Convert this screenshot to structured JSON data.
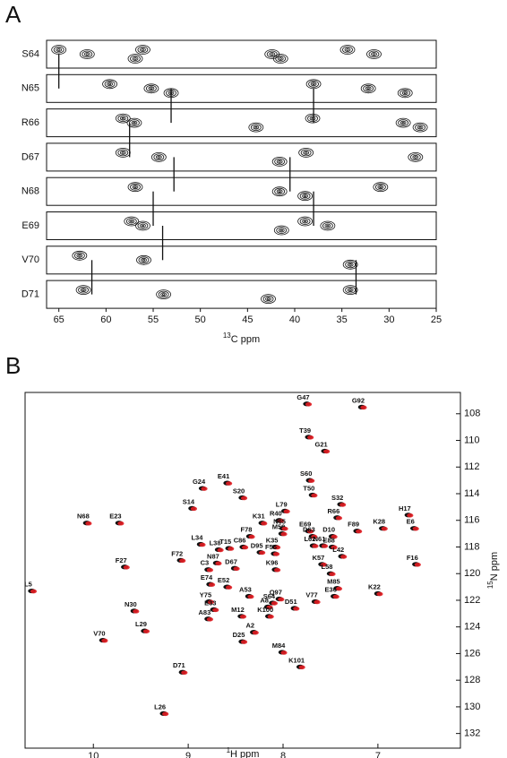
{
  "chart_data": [
    {
      "type": "strip",
      "panel": "A",
      "xlabel": {
        "sup": "13",
        "text": "C ppm"
      },
      "xlim": [
        66.3,
        25
      ],
      "xticks": [
        65,
        60,
        55,
        50,
        45,
        40,
        35,
        30,
        25
      ],
      "color": "#111111",
      "strips": [
        {
          "label": "S64",
          "peaks": [
            65.0,
            62.0,
            56.9,
            56.1,
            42.4,
            41.5,
            34.4,
            31.6
          ]
        },
        {
          "label": "N65",
          "peaks": [
            59.6,
            55.2,
            53.1,
            38.0,
            32.2,
            28.3
          ]
        },
        {
          "label": "R66",
          "peaks": [
            58.2,
            57.0,
            44.1,
            38.1,
            28.5,
            26.7
          ]
        },
        {
          "label": "D67",
          "peaks": [
            58.2,
            54.4,
            41.6,
            38.8,
            27.2
          ]
        },
        {
          "label": "N68",
          "peaks": [
            56.9,
            41.6,
            38.9,
            30.9
          ]
        },
        {
          "label": "E69",
          "peaks": [
            57.3,
            56.1,
            41.4,
            38.9,
            36.5
          ]
        },
        {
          "label": "V70",
          "peaks": [
            62.8,
            56.0,
            34.1
          ]
        },
        {
          "label": "D71",
          "peaks": [
            62.4,
            53.9,
            42.8,
            34.1
          ]
        }
      ],
      "connections": [
        {
          "x": 65.0,
          "from": 0,
          "to": 1
        },
        {
          "x": 53.1,
          "from": 1,
          "to": 2
        },
        {
          "x": 38.0,
          "from": 1,
          "to": 2
        },
        {
          "x": 57.5,
          "from": 2,
          "to": 3
        },
        {
          "x": 52.8,
          "from": 3,
          "to": 4
        },
        {
          "x": 40.5,
          "from": 3,
          "to": 4
        },
        {
          "x": 38.0,
          "from": 4,
          "to": 5
        },
        {
          "x": 55.0,
          "from": 4,
          "to": 5
        },
        {
          "x": 54.0,
          "from": 5,
          "to": 6
        },
        {
          "x": 61.5,
          "from": 6,
          "to": 7
        },
        {
          "x": 33.5,
          "from": 6,
          "to": 7
        }
      ]
    },
    {
      "type": "scatter",
      "panel": "B",
      "xlabel": {
        "sup": "1",
        "text": "H ppm"
      },
      "ylabel": {
        "sup": "15",
        "text": "N ppm"
      },
      "xlim": [
        10.72,
        6.13
      ],
      "xticks": [
        10,
        9,
        8,
        7
      ],
      "ylim": [
        106.4,
        133.1
      ],
      "yticks": [
        108,
        110,
        112,
        114,
        116,
        118,
        120,
        122,
        124,
        126,
        128,
        130,
        132
      ],
      "colors": [
        "#111111",
        "#e31e24"
      ],
      "peaks": [
        {
          "label": "G47",
          "x": 7.74,
          "y": 107.26
        },
        {
          "label": "G92",
          "x": 7.16,
          "y": 107.5
        },
        {
          "label": "T39",
          "x": 7.72,
          "y": 109.75
        },
        {
          "label": "G21",
          "x": 7.55,
          "y": 110.8
        },
        {
          "label": "S60",
          "x": 7.71,
          "y": 113.0
        },
        {
          "label": "T50",
          "x": 7.68,
          "y": 114.1
        },
        {
          "label": "E41",
          "x": 8.58,
          "y": 113.2
        },
        {
          "label": "S20",
          "x": 8.42,
          "y": 114.3
        },
        {
          "label": "G24",
          "x": 8.84,
          "y": 113.6
        },
        {
          "label": "S32",
          "x": 7.38,
          "y": 114.8
        },
        {
          "label": "H17",
          "x": 6.67,
          "y": 115.6
        },
        {
          "label": "R66",
          "x": 7.42,
          "y": 115.8
        },
        {
          "label": "L79",
          "x": 7.97,
          "y": 115.3
        },
        {
          "label": "S14",
          "x": 8.95,
          "y": 115.1
        },
        {
          "label": "K31",
          "x": 8.21,
          "y": 116.2
        },
        {
          "label": "E69",
          "x": 7.72,
          "y": 116.8
        },
        {
          "label": "K28",
          "x": 6.94,
          "y": 116.6
        },
        {
          "label": "E6",
          "x": 6.61,
          "y": 116.6
        },
        {
          "label": "N68",
          "x": 10.06,
          "y": 116.2
        },
        {
          "label": "E23",
          "x": 9.72,
          "y": 116.2
        },
        {
          "label": "M59",
          "x": 8.0,
          "y": 117.0
        },
        {
          "label": "R40",
          "x": 8.03,
          "y": 116.0
        },
        {
          "label": "N65",
          "x": 7.99,
          "y": 116.6
        },
        {
          "label": "D63",
          "x": 7.68,
          "y": 117.2
        },
        {
          "label": "D10",
          "x": 7.47,
          "y": 117.2
        },
        {
          "label": "F78",
          "x": 8.34,
          "y": 117.2
        },
        {
          "label": "F89",
          "x": 7.21,
          "y": 116.8
        },
        {
          "label": "L34",
          "x": 8.86,
          "y": 117.8
        },
        {
          "label": "C86",
          "x": 8.41,
          "y": 118.0
        },
        {
          "label": "T15",
          "x": 8.56,
          "y": 118.1
        },
        {
          "label": "L38",
          "x": 8.67,
          "y": 118.2
        },
        {
          "label": "K35",
          "x": 8.07,
          "y": 118.0
        },
        {
          "label": "L62",
          "x": 7.67,
          "y": 117.9
        },
        {
          "label": "N61",
          "x": 7.57,
          "y": 117.9
        },
        {
          "label": "E88",
          "x": 7.47,
          "y": 118.0
        },
        {
          "label": "D95",
          "x": 8.23,
          "y": 118.4
        },
        {
          "label": "F55",
          "x": 8.08,
          "y": 118.5
        },
        {
          "label": "F72",
          "x": 9.07,
          "y": 119.0
        },
        {
          "label": "N87",
          "x": 8.69,
          "y": 119.2
        },
        {
          "label": "L42",
          "x": 7.37,
          "y": 118.7
        },
        {
          "label": "K57",
          "x": 7.58,
          "y": 119.3
        },
        {
          "label": "F16",
          "x": 6.59,
          "y": 119.3
        },
        {
          "label": "F27",
          "x": 9.66,
          "y": 119.5
        },
        {
          "label": "D67",
          "x": 8.5,
          "y": 119.6
        },
        {
          "label": "K96",
          "x": 8.07,
          "y": 119.7
        },
        {
          "label": "C3",
          "x": 8.78,
          "y": 119.7
        },
        {
          "label": "L58",
          "x": 7.49,
          "y": 120.0
        },
        {
          "label": "E74",
          "x": 8.76,
          "y": 120.8
        },
        {
          "label": "L5",
          "x": 10.64,
          "y": 121.3
        },
        {
          "label": "E52",
          "x": 8.58,
          "y": 121.0
        },
        {
          "label": "M85",
          "x": 7.42,
          "y": 121.1
        },
        {
          "label": "E36",
          "x": 7.45,
          "y": 121.7
        },
        {
          "label": "V77",
          "x": 7.65,
          "y": 122.1
        },
        {
          "label": "K22",
          "x": 6.99,
          "y": 121.5
        },
        {
          "label": "A53",
          "x": 8.35,
          "y": 121.7
        },
        {
          "label": "S64",
          "x": 8.1,
          "y": 122.2
        },
        {
          "label": "A8",
          "x": 8.15,
          "y": 122.5
        },
        {
          "label": "Y75",
          "x": 8.77,
          "y": 122.1
        },
        {
          "label": "E33",
          "x": 8.72,
          "y": 122.7
        },
        {
          "label": "D51",
          "x": 7.87,
          "y": 122.6
        },
        {
          "label": "Q97",
          "x": 8.03,
          "y": 121.9
        },
        {
          "label": "K100",
          "x": 8.14,
          "y": 123.2
        },
        {
          "label": "M12",
          "x": 8.43,
          "y": 123.2
        },
        {
          "label": "A83",
          "x": 8.78,
          "y": 123.4
        },
        {
          "label": "N30",
          "x": 9.56,
          "y": 122.8
        },
        {
          "label": "L29",
          "x": 9.45,
          "y": 124.3
        },
        {
          "label": "V70",
          "x": 9.89,
          "y": 125.0
        },
        {
          "label": "A2",
          "x": 8.3,
          "y": 124.4
        },
        {
          "label": "D25",
          "x": 8.42,
          "y": 125.1
        },
        {
          "label": "M84",
          "x": 8.0,
          "y": 125.9
        },
        {
          "label": "K101",
          "x": 7.81,
          "y": 127.0
        },
        {
          "label": "D71",
          "x": 9.05,
          "y": 127.4
        },
        {
          "label": "L26",
          "x": 9.25,
          "y": 130.5
        }
      ]
    }
  ]
}
